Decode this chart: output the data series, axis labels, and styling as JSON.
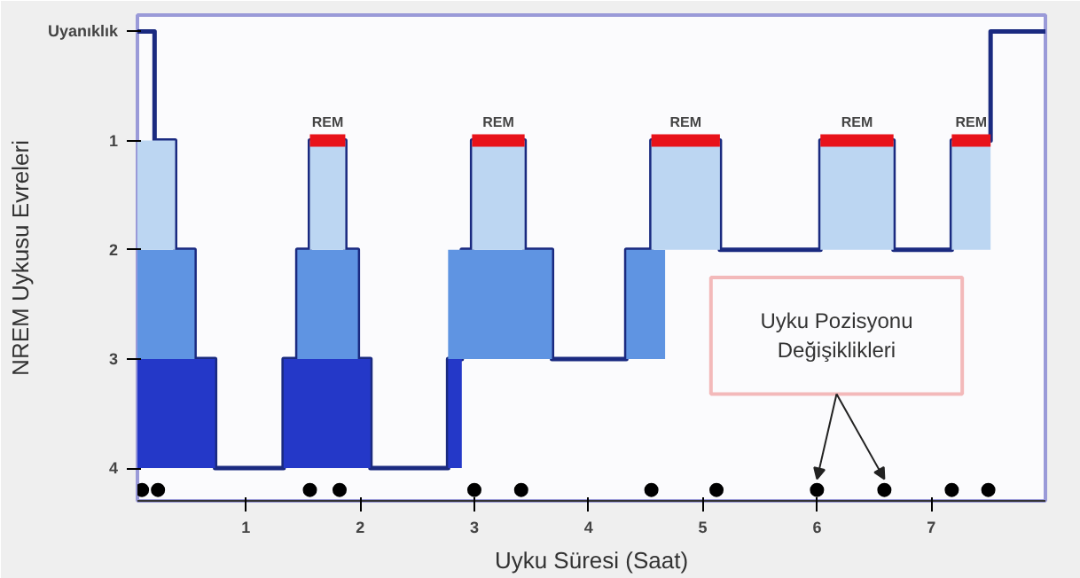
{
  "chart_data": {
    "type": "step",
    "xlabel": "Uyku Süresi (Saat)",
    "ylabel": "NREM Uykusu Evreleri",
    "xlim": [
      0.05,
      8.0
    ],
    "ylim": [
      4.3,
      -0.15
    ],
    "xticks": [
      1,
      2,
      3,
      4,
      5,
      6,
      7
    ],
    "yticks": [
      {
        "value": 0,
        "label": "Uyanıklık"
      },
      1,
      2,
      3,
      4
    ],
    "grid": false,
    "series": [
      {
        "color": "#1a2a80",
        "x": [
          0.05,
          0.2,
          0.38,
          0.55,
          0.73,
          1.33,
          1.45,
          1.56,
          1.87,
          1.98,
          2.09,
          2.77,
          2.89,
          2.98,
          3.44,
          3.68,
          4.33,
          4.55,
          5.15,
          6.03,
          6.67,
          7.18,
          7.52,
          8.0
        ],
        "values": [
          0,
          1,
          2,
          3,
          4,
          3,
          2,
          1,
          2,
          3,
          4,
          3,
          2,
          1,
          2,
          3,
          2,
          1,
          2,
          1,
          2,
          1,
          0,
          0
        ]
      },
      {
        "type": "histogram",
        "color": "#2438c8",
        "bins": [
          0.05,
          0.73,
          1.33,
          2.09,
          2.77,
          2.89
        ],
        "values": [
          1,
          null,
          1,
          null,
          1
        ],
        "base": [
          3,
          null,
          3,
          null,
          3
        ]
      },
      {
        "type": "histogram",
        "color": "#5f94e2",
        "bins": [
          0.05,
          0.55,
          1.45,
          1.98,
          2.77,
          3.68,
          4.33,
          4.67
        ],
        "values": [
          1,
          null,
          1,
          null,
          1,
          null,
          1
        ],
        "base": [
          2,
          null,
          2,
          null,
          2,
          null,
          2
        ]
      },
      {
        "type": "histogram",
        "color": "#bcd6f2",
        "bins": [
          0.05,
          0.38,
          1.56,
          1.87,
          2.98,
          3.44,
          4.55,
          5.15,
          6.03,
          6.67,
          7.18,
          7.52
        ],
        "values": [
          1,
          null,
          1,
          null,
          1,
          null,
          1,
          null,
          1,
          null,
          1
        ],
        "base": [
          1,
          null,
          1,
          null,
          1,
          null,
          1,
          null,
          1,
          null,
          1
        ]
      },
      {
        "type": "step",
        "name": "REM",
        "color": "#e8121a",
        "x": [
          1.56,
          1.87,
          2.98,
          3.44,
          4.55,
          5.15,
          6.03,
          6.67,
          7.18,
          7.52
        ],
        "values": [
          1,
          null,
          1,
          null,
          1,
          null,
          1,
          null,
          1,
          1
        ]
      },
      {
        "type": "scatter",
        "marker": "circle",
        "color": "#000000",
        "x": [
          0.09,
          0.23,
          1.56,
          1.82,
          3.0,
          3.41,
          4.55,
          5.12,
          6.0,
          6.59,
          7.18,
          7.5
        ],
        "values": [
          4.2,
          4.2,
          4.2,
          4.2,
          4.2,
          4.2,
          4.2,
          4.2,
          4.2,
          4.2,
          4.2,
          4.2
        ]
      }
    ],
    "annotations": [
      "Uyku Pozisyonu Değişiklikleri"
    ]
  }
}
